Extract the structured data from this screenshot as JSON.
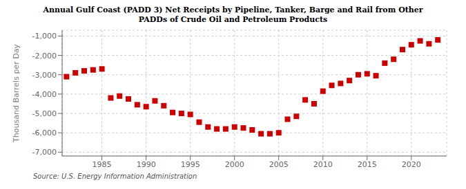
{
  "chart_data": {
    "type": "scatter",
    "title": "Annual Gulf Coast (PADD 3) Net Receipts by Pipeline, Tanker, Barge and Rail from Other\nPADDs of Crude Oil and Petroleum Products",
    "y_label": "Thousand Barrels per Day",
    "annotations": [
      "Source: U.S. Energy Information Administration"
    ],
    "x": [
      1981,
      1982,
      1983,
      1984,
      1985,
      1986,
      1987,
      1988,
      1989,
      1990,
      1991,
      1992,
      1993,
      1994,
      1995,
      1996,
      1997,
      1998,
      1999,
      2000,
      2001,
      2002,
      2003,
      2004,
      2005,
      2006,
      2007,
      2008,
      2009,
      2010,
      2011,
      2012,
      2013,
      2014,
      2015,
      2016,
      2017,
      2018,
      2019,
      2020,
      2021,
      2022,
      2023
    ],
    "values": [
      -3100,
      -2900,
      -2800,
      -2750,
      -2700,
      -4200,
      -4100,
      -4250,
      -4550,
      -4650,
      -4350,
      -4600,
      -4950,
      -5000,
      -5050,
      -5450,
      -5700,
      -5800,
      -5800,
      -5700,
      -5750,
      -5850,
      -6050,
      -6050,
      -6000,
      -5300,
      -5150,
      -4300,
      -4500,
      -3850,
      -3550,
      -3450,
      -3300,
      -3000,
      -2950,
      -3050,
      -2400,
      -2200,
      -1700,
      -1450,
      -1250,
      -1400,
      -1200
    ],
    "color": "#cc0000",
    "marker": "square",
    "xlim": [
      1980.5,
      2024
    ],
    "xticks": [
      1985,
      1990,
      1995,
      2000,
      2005,
      2010,
      2015,
      2020
    ],
    "ylim": [
      -7200,
      -700
    ],
    "yticks": [
      {
        "value": -7000,
        "label": "-7,000"
      },
      {
        "value": -6000,
        "label": "-6,000"
      },
      {
        "value": -5000,
        "label": "-5,000"
      },
      {
        "value": -4000,
        "label": "-4,000"
      },
      {
        "value": -3000,
        "label": "-3,000"
      },
      {
        "value": -2000,
        "label": "-2,000"
      },
      {
        "value": -1000,
        "label": "-1,000"
      }
    ],
    "grid": true
  }
}
